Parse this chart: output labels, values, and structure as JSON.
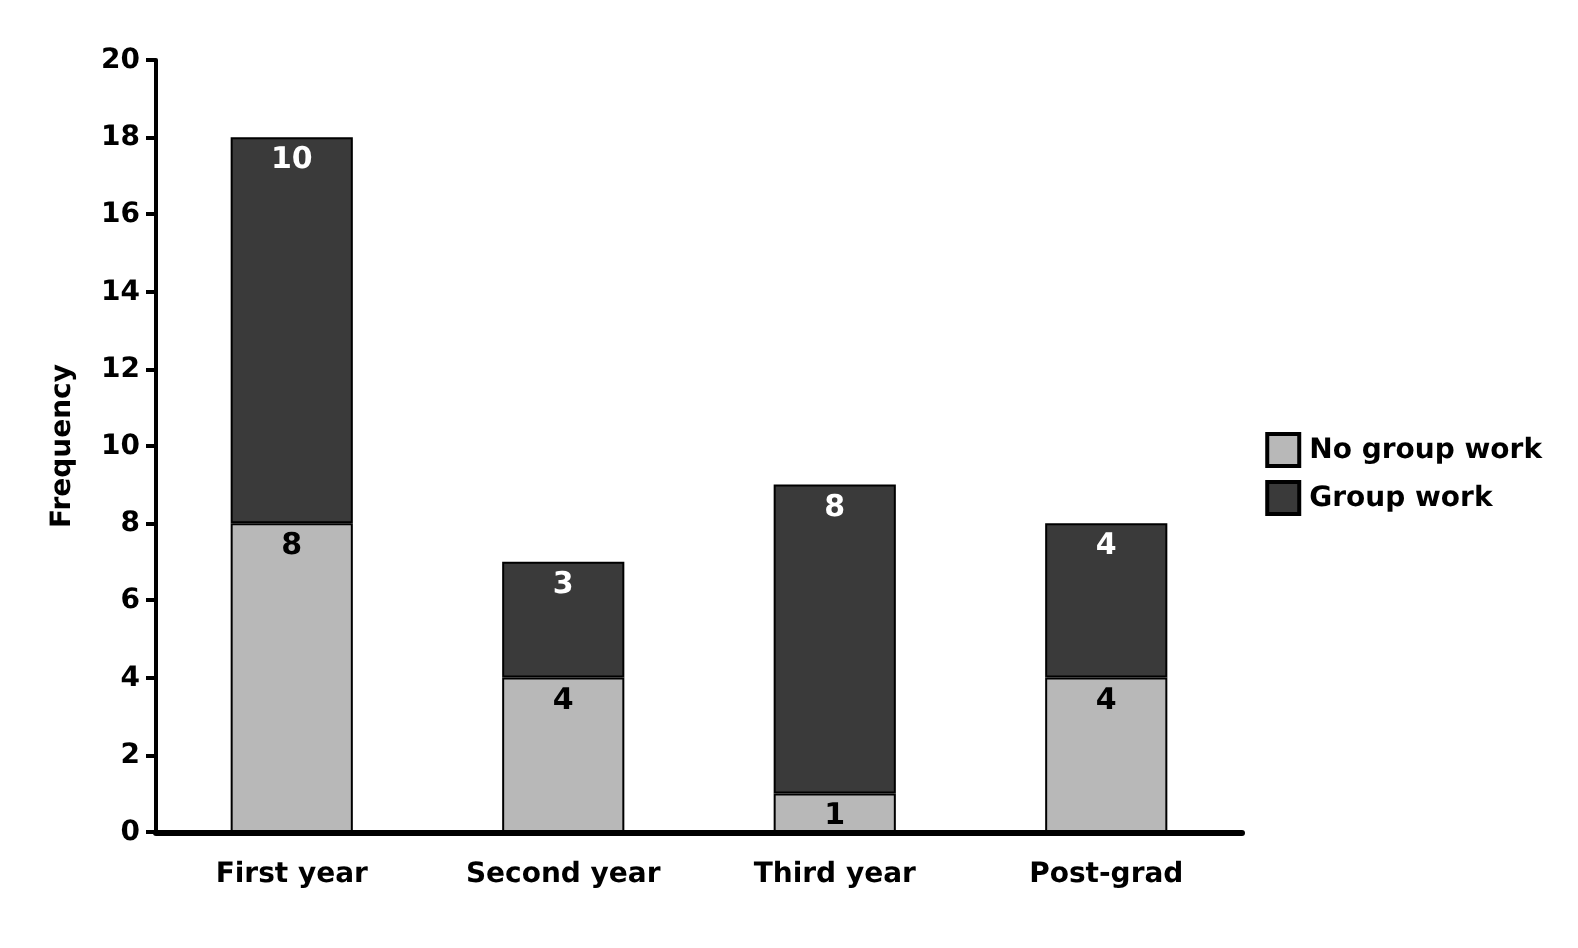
{
  "chart_data": {
    "type": "bar",
    "stacked": true,
    "ylabel": "Frequency",
    "categories": [
      "First year",
      "Second year",
      "Third year",
      "Post-grad"
    ],
    "series": [
      {
        "name": "No group work",
        "color": "#b8b8b8",
        "values": [
          8,
          4,
          1,
          4
        ]
      },
      {
        "name": "Group work",
        "color": "#3a3a3a",
        "values": [
          10,
          3,
          8,
          4
        ]
      }
    ],
    "ylim": [
      0,
      20
    ],
    "yticks": [
      0,
      2,
      4,
      6,
      8,
      10,
      12,
      14,
      16,
      18,
      20
    ],
    "data_labels": true,
    "grid": false,
    "legend": "right"
  }
}
